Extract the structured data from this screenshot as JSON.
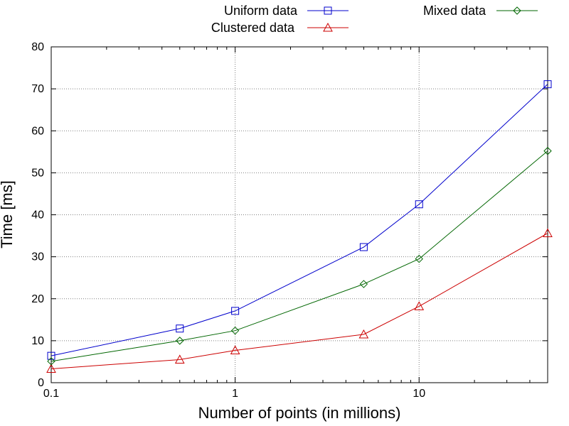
{
  "chart_data": {
    "type": "line",
    "title": "",
    "xlabel": "Number of points (in millions)",
    "ylabel": "Time [ms]",
    "x_scale": "log",
    "xlim": [
      0.1,
      50
    ],
    "ylim": [
      0,
      80
    ],
    "x_ticks": [
      0.1,
      1,
      10
    ],
    "x_tick_labels": [
      "0.1",
      "1",
      "10"
    ],
    "y_ticks": [
      0,
      10,
      20,
      30,
      40,
      50,
      60,
      70,
      80
    ],
    "y_tick_labels": [
      "0",
      "10",
      "20",
      "30",
      "40",
      "50",
      "60",
      "70",
      "80"
    ],
    "grid": true,
    "legend_position": "top (outside plot)",
    "x": [
      0.1,
      0.5,
      1,
      5,
      10,
      50
    ],
    "series": [
      {
        "name": "Uniform data",
        "color": "#0000cc",
        "marker": "square",
        "values": [
          6.4,
          12.9,
          17.1,
          32.3,
          42.5,
          71.1
        ]
      },
      {
        "name": "Clustered data",
        "color": "#cc0000",
        "marker": "triangle",
        "values": [
          3.3,
          5.5,
          7.7,
          11.5,
          18.2,
          35.6
        ]
      },
      {
        "name": "Mixed data",
        "color": "#006600",
        "marker": "diamond",
        "values": [
          5.1,
          10.0,
          12.4,
          23.5,
          29.5,
          55.2
        ]
      }
    ]
  }
}
